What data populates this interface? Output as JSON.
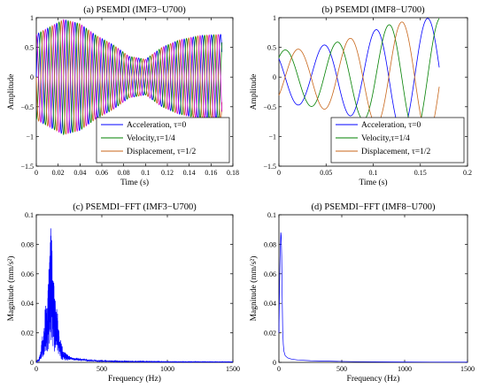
{
  "chart_data": [
    {
      "type": "line",
      "title": "(a) PSEMDI (IMF3−U700)",
      "xlabel": "Time (s)",
      "ylabel": "Amplitude",
      "xlim": [
        0,
        0.18
      ],
      "ylim": [
        -1.5,
        1
      ],
      "xticks": [
        "0",
        "0.02",
        "0.04",
        "0.06",
        "0.08",
        "0.1",
        "0.12",
        "0.14",
        "0.16",
        "0.18"
      ],
      "yticks": [
        "−1.5",
        "−1",
        "−0.5",
        "0",
        "0.5",
        "1"
      ],
      "legend_position": "bottom-right",
      "series": [
        {
          "name": "Acceleration, τ=0",
          "color": "#0000ff",
          "x_range": [
            0,
            0.17
          ],
          "freq_hz": 120,
          "phase_cycles": 0
        },
        {
          "name": "Velocity,τ=1/4",
          "color": "#008000",
          "x_range": [
            0,
            0.17
          ],
          "freq_hz": 120,
          "phase_cycles": 0.25
        },
        {
          "name": "Displacement, τ=1/2",
          "color": "#c8661a",
          "x_range": [
            0,
            0.17
          ],
          "freq_hz": 120,
          "phase_cycles": 0.5
        },
        {
          "name": "",
          "color": "#cc00cc",
          "x_range": [
            0,
            0.17
          ],
          "freq_hz": 120,
          "phase_cycles": 0.75
        }
      ],
      "envelope": [
        [
          0,
          0.72
        ],
        [
          0.01,
          0.82
        ],
        [
          0.025,
          0.97
        ],
        [
          0.04,
          0.9
        ],
        [
          0.055,
          0.7
        ],
        [
          0.07,
          0.55
        ],
        [
          0.085,
          0.35
        ],
        [
          0.1,
          0.3
        ],
        [
          0.115,
          0.5
        ],
        [
          0.13,
          0.62
        ],
        [
          0.15,
          0.7
        ],
        [
          0.17,
          0.72
        ]
      ]
    },
    {
      "type": "line",
      "title": "(b) PSEMDI (IMF8−U700)",
      "xlabel": "Time (s)",
      "ylabel": "Amplitude",
      "xlim": [
        0,
        0.2
      ],
      "ylim": [
        -1.5,
        1
      ],
      "xticks": [
        "0",
        "0.05",
        "0.1",
        "0.15",
        "0.2"
      ],
      "yticks": [
        "−1.5",
        "−1",
        "−0.5",
        "0",
        "0.5",
        "1"
      ],
      "legend_position": "bottom-right",
      "series": [
        {
          "name": "Acceleration, τ=0",
          "color": "#0000ff",
          "x_range": [
            0,
            0.17
          ],
          "freq_hz": 18.2,
          "phase_cycles": 0.62
        },
        {
          "name": "Velocity,τ=1/4",
          "color": "#008000",
          "x_range": [
            0,
            0.17
          ],
          "freq_hz": 18.2,
          "phase_cycles": 0.87
        },
        {
          "name": "Displacement, τ=1/2",
          "color": "#c8661a",
          "x_range": [
            0,
            0.17
          ],
          "freq_hz": 18.2,
          "phase_cycles": 0.12
        }
      ],
      "envelope": [
        [
          0,
          0.45
        ],
        [
          0.03,
          0.48
        ],
        [
          0.06,
          0.58
        ],
        [
          0.09,
          0.72
        ],
        [
          0.12,
          0.9
        ],
        [
          0.15,
          0.98
        ],
        [
          0.17,
          1.0
        ]
      ]
    },
    {
      "type": "line",
      "title": "(c) PSEMDI−FFT (IMF3−U700)",
      "xlabel": "Frequency (Hz)",
      "ylabel": "Magnitude (mm/s²)",
      "xlim": [
        0,
        1500
      ],
      "ylim": [
        0,
        0.1
      ],
      "xticks": [
        "0",
        "500",
        "1000",
        "1500"
      ],
      "yticks": [
        "0",
        "0.02",
        "0.04",
        "0.06",
        "0.08",
        "0.1"
      ],
      "series": [
        {
          "name": "",
          "color": "#0000ff",
          "peaks": [
            [
              30,
              0.005
            ],
            [
              45,
              0.02
            ],
            [
              60,
              0.03
            ],
            [
              70,
              0.042
            ],
            [
              80,
              0.036
            ],
            [
              90,
              0.05
            ],
            [
              100,
              0.078
            ],
            [
              110,
              0.097
            ],
            [
              120,
              0.082
            ],
            [
              130,
              0.06
            ],
            [
              140,
              0.046
            ],
            [
              150,
              0.04
            ],
            [
              160,
              0.035
            ],
            [
              175,
              0.022
            ],
            [
              190,
              0.013
            ],
            [
              210,
              0.008
            ],
            [
              240,
              0.005
            ],
            [
              280,
              0.003
            ],
            [
              330,
              0.0025
            ],
            [
              400,
              0.0018
            ],
            [
              500,
              0.0012
            ],
            [
              700,
              0.0008
            ],
            [
              1000,
              0.0005
            ],
            [
              1500,
              0.0004
            ]
          ]
        }
      ]
    },
    {
      "type": "line",
      "title": "(d) PSEMDI−FFT (IMF8−U700)",
      "xlabel": "Frequency (Hz)",
      "ylabel": "Magnitude (mm/s²)",
      "xlim": [
        0,
        1500
      ],
      "ylim": [
        0,
        0.1
      ],
      "xticks": [
        "0",
        "500",
        "1000",
        "1500"
      ],
      "yticks": [
        "0",
        "0.02",
        "0.04",
        "0.06",
        "0.08",
        "0.1"
      ],
      "series": [
        {
          "name": "",
          "color": "#0000ff",
          "points": [
            [
              0,
              0.02
            ],
            [
              5,
              0.05
            ],
            [
              10,
              0.075
            ],
            [
              15,
              0.088
            ],
            [
              18,
              0.086
            ],
            [
              22,
              0.072
            ],
            [
              26,
              0.045
            ],
            [
              30,
              0.022
            ],
            [
              35,
              0.012
            ],
            [
              40,
              0.0075
            ],
            [
              50,
              0.0045
            ],
            [
              70,
              0.003
            ],
            [
              100,
              0.0022
            ],
            [
              150,
              0.0016
            ],
            [
              250,
              0.0011
            ],
            [
              400,
              0.0008
            ],
            [
              600,
              0.0005
            ],
            [
              900,
              0.0003
            ],
            [
              1200,
              0.0002
            ],
            [
              1500,
              0.00015
            ]
          ]
        }
      ]
    }
  ]
}
